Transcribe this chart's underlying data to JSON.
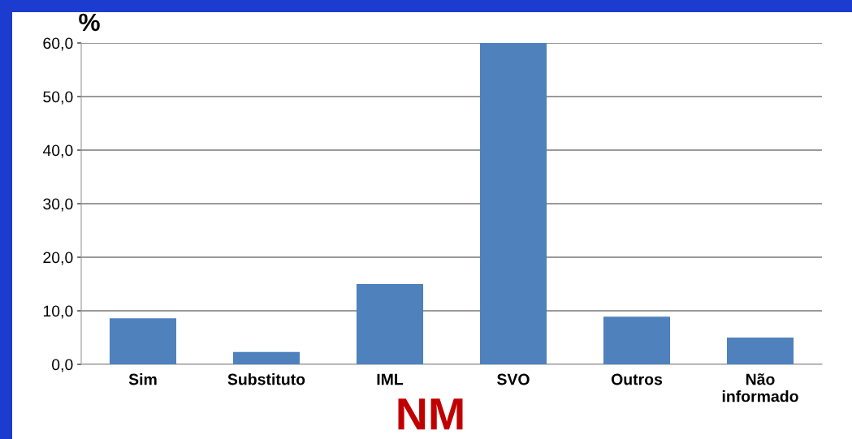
{
  "chart_data": {
    "type": "bar",
    "ylabel": "%",
    "categories": [
      "Sim",
      "Substituto",
      "IML",
      "SVO",
      "Outros",
      "Não\ninformado"
    ],
    "values": [
      8.6,
      2.3,
      15.0,
      60.0,
      8.9,
      5.0
    ],
    "color": "#4f81bd",
    "ylim": [
      0,
      60
    ],
    "yticks": [
      {
        "value": 0,
        "label": "0,0"
      },
      {
        "value": 10,
        "label": "10,0"
      },
      {
        "value": 20,
        "label": "20,0"
      },
      {
        "value": 30,
        "label": "30,0"
      },
      {
        "value": 40,
        "label": "40,0"
      },
      {
        "value": 50,
        "label": "50,0"
      },
      {
        "value": 60,
        "label": "60,0"
      }
    ],
    "grid": "y",
    "annotations": [
      "NM"
    ]
  }
}
